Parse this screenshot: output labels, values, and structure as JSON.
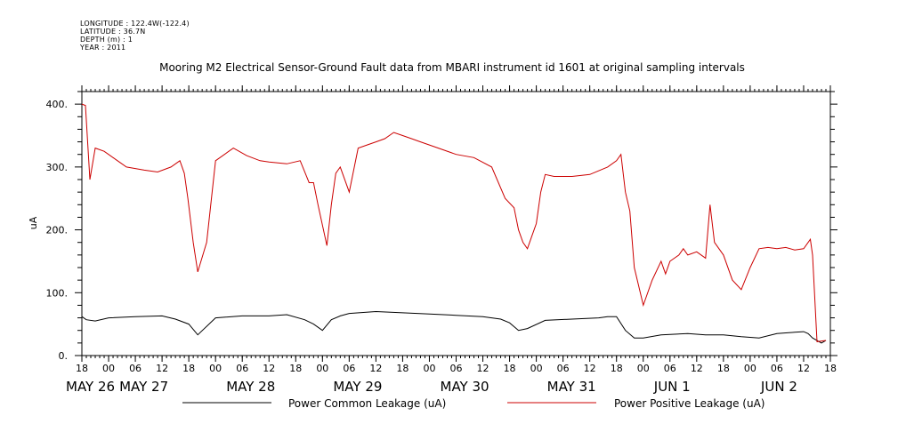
{
  "metadata": {
    "longitude": "LONGITUDE : 122.4W(-122.4)",
    "latitude": "LATITUDE : 36.7N",
    "depth": "DEPTH (m) : 1",
    "year": "YEAR : 2011"
  },
  "chart_data": {
    "type": "line",
    "title": "Mooring M2 Electrical Sensor-Ground Fault data from MBARI instrument id 1601 at original sampling intervals",
    "xlabel": "",
    "ylabel": "uA",
    "x_unit": "hours since 2011-05-26 18:00",
    "xlim": [
      0,
      168
    ],
    "ylim": [
      0,
      420
    ],
    "yticks": [
      0,
      100,
      200,
      300,
      400
    ],
    "ytick_labels": [
      "0.",
      "100.",
      "200.",
      "300.",
      "400."
    ],
    "xtick_labels": [
      "18",
      "00",
      "06",
      "12",
      "18",
      "00",
      "06",
      "12",
      "18",
      "00",
      "06",
      "12",
      "18",
      "00",
      "06",
      "12",
      "18",
      "00",
      "06",
      "12",
      "18",
      "00",
      "06",
      "12",
      "18",
      "00",
      "06",
      "12",
      "18"
    ],
    "date_labels": [
      {
        "x": 0,
        "label": "MAY 26"
      },
      {
        "x": 12,
        "label": "MAY 27"
      },
      {
        "x": 36,
        "label": "MAY 28"
      },
      {
        "x": 60,
        "label": "MAY 29"
      },
      {
        "x": 84,
        "label": "MAY 30"
      },
      {
        "x": 108,
        "label": "MAY 31"
      },
      {
        "x": 132,
        "label": "JUN  1"
      },
      {
        "x": 156,
        "label": "JUN  2"
      }
    ],
    "series": [
      {
        "name": "Power Common Leakage (uA)",
        "color": "#000000",
        "x": [
          0,
          1,
          3,
          6,
          12,
          18,
          21,
          24,
          26,
          30,
          36,
          42,
          46,
          50,
          52,
          54,
          56,
          58,
          60,
          66,
          72,
          78,
          84,
          90,
          94,
          96,
          98,
          100,
          104,
          110,
          116,
          118,
          120,
          122,
          124,
          126,
          130,
          136,
          140,
          144,
          148,
          152,
          156,
          160,
          162,
          163,
          164,
          166,
          167
        ],
        "y": [
          62,
          57,
          55,
          60,
          62,
          63,
          58,
          50,
          33,
          60,
          63,
          63,
          65,
          57,
          50,
          40,
          57,
          63,
          67,
          70,
          68,
          66,
          64,
          62,
          58,
          52,
          40,
          43,
          56,
          58,
          60,
          62,
          62,
          40,
          28,
          28,
          33,
          35,
          33,
          33,
          30,
          28,
          35,
          37,
          38,
          35,
          28,
          20,
          24
        ]
      },
      {
        "name": "Power Positive Leakage (uA)",
        "color": "#cc0000",
        "x": [
          0,
          0.8,
          1.8,
          3,
          5,
          8,
          10,
          14,
          17,
          20,
          22,
          23,
          23.8,
          25,
          26,
          28,
          30,
          34,
          37,
          40,
          42,
          46,
          49,
          51,
          52,
          53,
          55,
          56,
          57,
          58,
          60,
          62,
          64,
          66,
          68,
          70,
          72,
          74,
          76,
          78,
          80,
          84,
          88,
          92,
          95,
          97,
          98,
          99,
          100,
          101,
          102,
          103,
          104,
          106,
          110,
          114,
          118,
          120,
          121,
          122,
          123,
          124,
          126,
          128,
          130,
          131,
          132,
          134,
          135,
          136,
          138,
          140,
          141,
          142,
          144,
          146,
          148,
          150,
          152,
          154,
          156,
          158,
          160,
          162,
          163.5,
          164,
          165,
          167
        ],
        "y": [
          400,
          398,
          280,
          330,
          325,
          310,
          300,
          295,
          292,
          300,
          310,
          290,
          250,
          180,
          133,
          180,
          310,
          330,
          318,
          310,
          308,
          305,
          310,
          275,
          275,
          240,
          175,
          240,
          290,
          300,
          260,
          330,
          335,
          340,
          345,
          355,
          350,
          345,
          340,
          335,
          330,
          320,
          315,
          300,
          250,
          235,
          200,
          180,
          170,
          190,
          210,
          260,
          288,
          285,
          285,
          288,
          300,
          310,
          320,
          260,
          230,
          140,
          80,
          120,
          150,
          130,
          150,
          160,
          170,
          160,
          165,
          155,
          240,
          180,
          160,
          120,
          105,
          140,
          170,
          172,
          170,
          172,
          168,
          170,
          185,
          160,
          22,
          24
        ]
      }
    ],
    "legend": {
      "position": "bottom"
    }
  }
}
